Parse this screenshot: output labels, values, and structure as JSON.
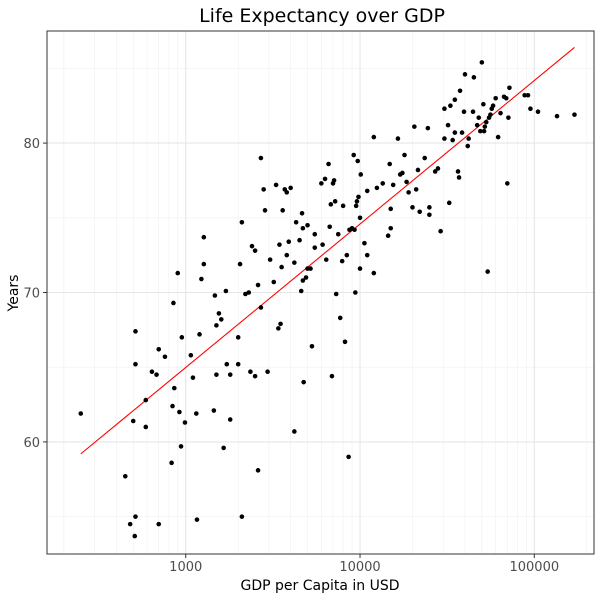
{
  "chart_data": {
    "type": "scatter",
    "title": "Life Expectancy over GDP",
    "xlabel": "GDP per Capita in USD",
    "ylabel": "Years",
    "x_scale": "log10",
    "xlim": [
      160,
      220000
    ],
    "ylim": [
      52.5,
      87.5
    ],
    "x_ticks": [
      1000,
      10000,
      100000
    ],
    "x_tick_labels": [
      "1000",
      "10000",
      "100000"
    ],
    "y_ticks": [
      60,
      70,
      80
    ],
    "y_tick_labels": [
      "60",
      "70",
      "80"
    ],
    "grid": true,
    "trendline": {
      "color": "#ff0000",
      "points": [
        [
          250,
          59.2
        ],
        [
          170000,
          86.4
        ]
      ]
    },
    "series": [
      {
        "points": [
          [
            250,
            61.9
          ],
          [
            450,
            57.7
          ],
          [
            480,
            54.5
          ],
          [
            500,
            61.4
          ],
          [
            510,
            53.7
          ],
          [
            515,
            55.0
          ],
          [
            515,
            67.4
          ],
          [
            515,
            65.2
          ],
          [
            590,
            62.8
          ],
          [
            590,
            61.0
          ],
          [
            640,
            64.7
          ],
          [
            680,
            64.5
          ],
          [
            700,
            66.2
          ],
          [
            700,
            54.5
          ],
          [
            760,
            65.7
          ],
          [
            830,
            58.6
          ],
          [
            840,
            62.4
          ],
          [
            850,
            69.3
          ],
          [
            860,
            63.6
          ],
          [
            900,
            71.3
          ],
          [
            920,
            62.0
          ],
          [
            940,
            59.7
          ],
          [
            950,
            67.0
          ],
          [
            990,
            61.3
          ],
          [
            1070,
            65.8
          ],
          [
            1100,
            64.3
          ],
          [
            1150,
            61.9
          ],
          [
            1160,
            54.8
          ],
          [
            1200,
            67.2
          ],
          [
            1230,
            70.9
          ],
          [
            1270,
            71.9
          ],
          [
            1270,
            73.7
          ],
          [
            1450,
            62.1
          ],
          [
            1470,
            69.8
          ],
          [
            1500,
            64.5
          ],
          [
            1500,
            67.8
          ],
          [
            1550,
            68.6
          ],
          [
            1600,
            68.2
          ],
          [
            1650,
            59.6
          ],
          [
            1700,
            70.1
          ],
          [
            1720,
            65.2
          ],
          [
            1800,
            64.5
          ],
          [
            1800,
            61.5
          ],
          [
            2000,
            65.2
          ],
          [
            2000,
            67.0
          ],
          [
            2050,
            71.9
          ],
          [
            2100,
            74.7
          ],
          [
            2100,
            55.0
          ],
          [
            2200,
            69.9
          ],
          [
            2300,
            70.0
          ],
          [
            2350,
            64.7
          ],
          [
            2400,
            73.1
          ],
          [
            2500,
            64.4
          ],
          [
            2500,
            72.8
          ],
          [
            2600,
            70.5
          ],
          [
            2600,
            58.1
          ],
          [
            2700,
            69.0
          ],
          [
            2700,
            79.0
          ],
          [
            2800,
            76.9
          ],
          [
            2850,
            75.5
          ],
          [
            2950,
            64.7
          ],
          [
            3050,
            72.2
          ],
          [
            3200,
            70.7
          ],
          [
            3300,
            77.2
          ],
          [
            3400,
            67.6
          ],
          [
            3450,
            73.2
          ],
          [
            3500,
            67.9
          ],
          [
            3550,
            71.7
          ],
          [
            3600,
            75.5
          ],
          [
            3700,
            76.9
          ],
          [
            3800,
            72.5
          ],
          [
            3800,
            76.7
          ],
          [
            3900,
            73.4
          ],
          [
            4000,
            77.0
          ],
          [
            4200,
            60.7
          ],
          [
            4200,
            72.0
          ],
          [
            4300,
            74.7
          ],
          [
            4500,
            73.5
          ],
          [
            4600,
            70.1
          ],
          [
            4650,
            75.3
          ],
          [
            4700,
            70.8
          ],
          [
            4700,
            74.3
          ],
          [
            4750,
            64.0
          ],
          [
            4900,
            71.0
          ],
          [
            5000,
            71.6
          ],
          [
            5000,
            74.5
          ],
          [
            5200,
            71.6
          ],
          [
            5300,
            66.4
          ],
          [
            5500,
            73.0
          ],
          [
            5500,
            73.9
          ],
          [
            6000,
            77.3
          ],
          [
            6100,
            73.2
          ],
          [
            6300,
            77.6
          ],
          [
            6400,
            72.2
          ],
          [
            6600,
            78.6
          ],
          [
            6700,
            74.4
          ],
          [
            6800,
            75.9
          ],
          [
            6900,
            64.4
          ],
          [
            7000,
            77.3
          ],
          [
            7100,
            77.5
          ],
          [
            7200,
            76.1
          ],
          [
            7300,
            69.9
          ],
          [
            7500,
            73.9
          ],
          [
            7700,
            68.3
          ],
          [
            7900,
            72.1
          ],
          [
            8000,
            75.8
          ],
          [
            8200,
            66.7
          ],
          [
            8400,
            72.5
          ],
          [
            8600,
            59.0
          ],
          [
            8700,
            74.2
          ],
          [
            9000,
            74.3
          ],
          [
            9200,
            79.2
          ],
          [
            9300,
            74.2
          ],
          [
            9400,
            70.0
          ],
          [
            9500,
            75.8
          ],
          [
            9600,
            76.1
          ],
          [
            9700,
            78.8
          ],
          [
            9800,
            76.4
          ],
          [
            10000,
            71.6
          ],
          [
            10000,
            75.0
          ],
          [
            10100,
            77.9
          ],
          [
            10600,
            73.3
          ],
          [
            11000,
            72.5
          ],
          [
            11000,
            76.8
          ],
          [
            12000,
            80.4
          ],
          [
            12000,
            71.3
          ],
          [
            12500,
            77.0
          ],
          [
            13500,
            77.3
          ],
          [
            14500,
            73.8
          ],
          [
            14800,
            78.6
          ],
          [
            15000,
            74.3
          ],
          [
            15000,
            75.6
          ],
          [
            15500,
            77.2
          ],
          [
            16500,
            80.3
          ],
          [
            17000,
            77.9
          ],
          [
            17500,
            78.0
          ],
          [
            18000,
            79.2
          ],
          [
            18500,
            77.4
          ],
          [
            19000,
            76.7
          ],
          [
            20000,
            75.7
          ],
          [
            20500,
            81.1
          ],
          [
            21000,
            76.9
          ],
          [
            21500,
            78.2
          ],
          [
            22000,
            75.4
          ],
          [
            23500,
            79.0
          ],
          [
            24500,
            81.0
          ],
          [
            25000,
            75.2
          ],
          [
            25000,
            75.7
          ],
          [
            27000,
            78.1
          ],
          [
            28000,
            78.3
          ],
          [
            29000,
            74.1
          ],
          [
            30500,
            80.3
          ],
          [
            30500,
            82.3
          ],
          [
            32000,
            81.2
          ],
          [
            32500,
            76.0
          ],
          [
            33000,
            82.5
          ],
          [
            34000,
            80.2
          ],
          [
            35000,
            82.9
          ],
          [
            35000,
            80.7
          ],
          [
            36500,
            78.1
          ],
          [
            37000,
            77.7
          ],
          [
            37500,
            83.5
          ],
          [
            38500,
            80.7
          ],
          [
            39500,
            82.1
          ],
          [
            40000,
            84.6
          ],
          [
            41500,
            79.8
          ],
          [
            42000,
            80.3
          ],
          [
            44500,
            82.1
          ],
          [
            45000,
            84.4
          ],
          [
            47000,
            81.2
          ],
          [
            48000,
            81.7
          ],
          [
            49000,
            80.8
          ],
          [
            50000,
            85.4
          ],
          [
            51000,
            82.6
          ],
          [
            51500,
            80.8
          ],
          [
            52000,
            81.1
          ],
          [
            53000,
            81.4
          ],
          [
            54000,
            71.4
          ],
          [
            55000,
            81.7
          ],
          [
            56000,
            81.9
          ],
          [
            57000,
            82.3
          ],
          [
            58000,
            82.5
          ],
          [
            60000,
            83.0
          ],
          [
            62000,
            80.4
          ],
          [
            64000,
            82.0
          ],
          [
            67000,
            83.1
          ],
          [
            69000,
            83.0
          ],
          [
            70000,
            77.3
          ],
          [
            71000,
            81.7
          ],
          [
            72000,
            83.7
          ],
          [
            88000,
            83.2
          ],
          [
            92000,
            83.2
          ],
          [
            95000,
            82.3
          ],
          [
            105000,
            82.1
          ],
          [
            135000,
            81.8
          ],
          [
            170000,
            81.9
          ]
        ]
      }
    ]
  }
}
